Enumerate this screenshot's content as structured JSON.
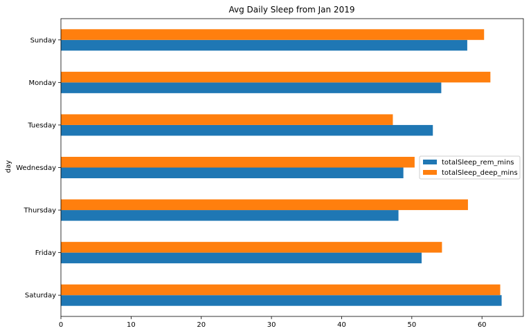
{
  "chart_data": {
    "type": "bar",
    "orientation": "horizontal",
    "title": "Avg Daily Sleep from Jan 2019",
    "xlabel": "",
    "ylabel": "day",
    "categories": [
      "Sunday",
      "Monday",
      "Tuesday",
      "Wednesday",
      "Thursday",
      "Friday",
      "Saturday"
    ],
    "series": [
      {
        "name": "totalSleep_rem_mins",
        "color": "#1f77b4",
        "values": [
          57.9,
          54.2,
          53.0,
          48.8,
          48.1,
          51.4,
          62.8
        ]
      },
      {
        "name": "totalSleep_deep_mins",
        "color": "#ff7f0e",
        "values": [
          60.3,
          61.2,
          47.3,
          50.4,
          58.0,
          54.3,
          62.6
        ]
      }
    ],
    "xlim": [
      0,
      65.9
    ],
    "xticks": [
      0,
      10,
      20,
      30,
      40,
      50,
      60
    ],
    "grid": false,
    "legend": "center-right"
  }
}
